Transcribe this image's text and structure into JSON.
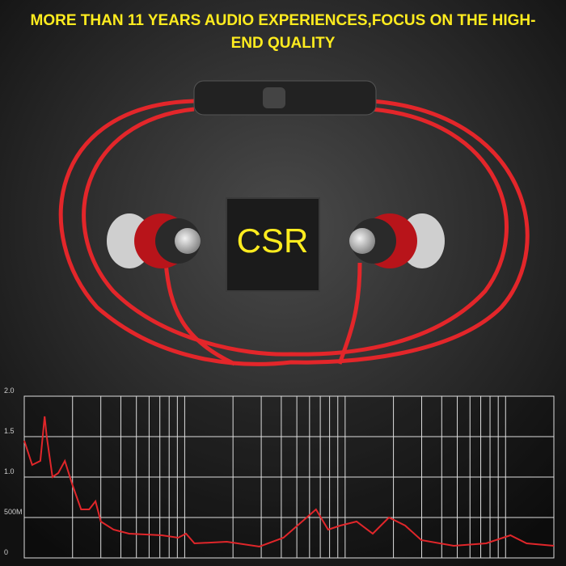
{
  "headline": "MORE THAN 11 YEARS AUDIO EXPERIENCES,FOCUS ON THE HIGH-END QUALITY",
  "chip_label": "CSR",
  "chart_data": {
    "type": "line",
    "x": [
      10,
      11.2,
      12.6,
      13.4,
      13.8,
      15,
      16.3,
      17.9,
      20,
      22.6,
      25.4,
      27.8,
      30,
      36,
      45,
      72,
      91,
      102,
      115,
      183,
      292,
      413,
      658,
      783,
      933,
      1178,
      1486,
      1875,
      2366,
      2985,
      4750,
      7560,
      10720,
      13520,
      20000
    ],
    "series": [
      {
        "name": null,
        "color": "#e0262a",
        "values": [
          1.45,
          1.15,
          1.2,
          1.75,
          1.5,
          1.0,
          1.05,
          1.2,
          0.9,
          0.6,
          0.6,
          0.7,
          0.45,
          0.35,
          0.3,
          0.28,
          0.25,
          0.3,
          0.18,
          0.2,
          0.14,
          0.25,
          0.6,
          0.35,
          0.4,
          0.45,
          0.3,
          0.5,
          0.4,
          0.22,
          0.15,
          0.18,
          0.28,
          0.18,
          0.15
        ]
      }
    ],
    "xlim": [
      10,
      20000
    ],
    "xscale": "log",
    "xticks": [
      10,
      20,
      30,
      40,
      50,
      60,
      70,
      80,
      90,
      100,
      200,
      300,
      400,
      500,
      600,
      700,
      800,
      900,
      1000,
      2000,
      3000,
      4000,
      5000,
      6000,
      7000,
      8000,
      9000,
      10000,
      20000
    ],
    "ylim": [
      0,
      2
    ],
    "yticks": [
      0,
      {
        "value": 0.5,
        "label": "500M"
      },
      {
        "value": 1,
        "label": "1.0"
      },
      {
        "value": 1.5,
        "label": "1.5"
      },
      {
        "value": 2,
        "label": "2.0"
      }
    ],
    "grid": true
  }
}
